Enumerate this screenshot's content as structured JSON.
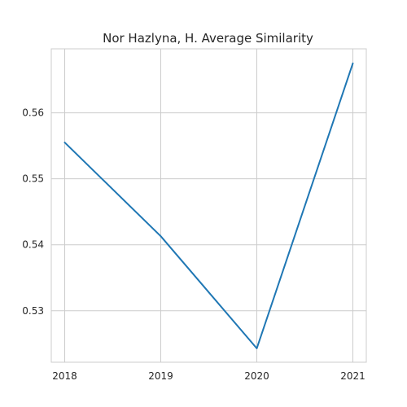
{
  "chart_data": {
    "type": "line",
    "title": "Nor Hazlyna, H. Average Similarity",
    "xlabel": "",
    "ylabel": "",
    "categories": [
      "2018",
      "2019",
      "2020",
      "2021"
    ],
    "x": [
      2018,
      2019,
      2020,
      2021
    ],
    "series": [
      {
        "values": [
          0.5555,
          0.5413,
          0.5243,
          0.5675
        ],
        "color": "#1f77b4"
      }
    ],
    "xlim": [
      2017.86,
      2021.14
    ],
    "ylim": [
      0.5222,
      0.5697
    ],
    "yticks": [
      0.53,
      0.54,
      0.55,
      0.56
    ],
    "ytick_labels": [
      "0.53",
      "0.54",
      "0.55",
      "0.56"
    ],
    "grid": true,
    "legend": "none"
  }
}
